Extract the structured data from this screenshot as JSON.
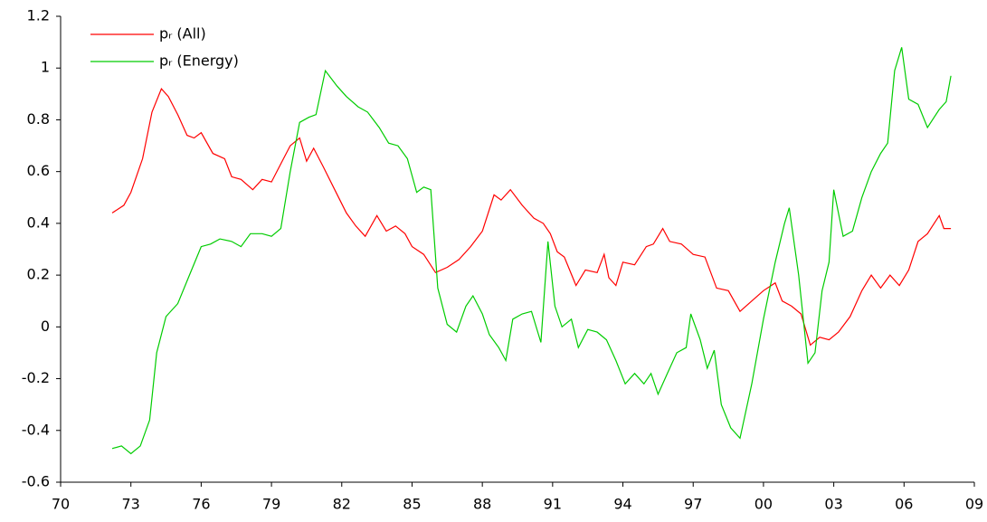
{
  "chart_data": {
    "type": "line",
    "xlim": [
      1970,
      2009
    ],
    "xticks": [
      {
        "value": 1970,
        "label": "70"
      },
      {
        "value": 1973,
        "label": "73"
      },
      {
        "value": 1976,
        "label": "76"
      },
      {
        "value": 1979,
        "label": "79"
      },
      {
        "value": 1982,
        "label": "82"
      },
      {
        "value": 1985,
        "label": "85"
      },
      {
        "value": 1988,
        "label": "88"
      },
      {
        "value": 1991,
        "label": "91"
      },
      {
        "value": 1994,
        "label": "94"
      },
      {
        "value": 1997,
        "label": "97"
      },
      {
        "value": 2000,
        "label": "00"
      },
      {
        "value": 2003,
        "label": "03"
      },
      {
        "value": 2006,
        "label": "06"
      },
      {
        "value": 2009,
        "label": "09"
      }
    ],
    "ylim": [
      -0.6,
      1.2
    ],
    "yticks": [
      -0.6,
      -0.4,
      -0.2,
      0,
      0.2,
      0.4,
      0.6,
      0.8,
      1,
      1.2
    ],
    "grid": false,
    "legend": "top-left",
    "series": [
      {
        "name": "pᵣ (All)",
        "color": "#ff0000",
        "x": [
          1972.2,
          1972.7,
          1973.0,
          1973.5,
          1973.9,
          1974.3,
          1974.6,
          1975.0,
          1975.4,
          1975.7,
          1976.0,
          1976.5,
          1977.0,
          1977.3,
          1977.7,
          1978.2,
          1978.6,
          1979.0,
          1979.4,
          1979.8,
          1980.2,
          1980.5,
          1980.8,
          1981.2,
          1981.7,
          1982.2,
          1982.6,
          1983.0,
          1983.5,
          1983.9,
          1984.3,
          1984.7,
          1985.0,
          1985.5,
          1986.0,
          1986.5,
          1987.0,
          1987.5,
          1988.0,
          1988.5,
          1988.8,
          1989.2,
          1989.7,
          1990.2,
          1990.6,
          1990.9,
          1991.2,
          1991.5,
          1992.0,
          1992.4,
          1992.9,
          1993.2,
          1993.4,
          1993.7,
          1994.0,
          1994.5,
          1995.0,
          1995.3,
          1995.7,
          1996.0,
          1996.5,
          1997.0,
          1997.5,
          1998.0,
          1998.5,
          1999.0,
          1999.5,
          2000.0,
          2000.5,
          2000.8,
          2001.2,
          2001.6,
          2002.0,
          2002.4,
          2002.8,
          2003.2,
          2003.7,
          2004.2,
          2004.6,
          2005.0,
          2005.4,
          2005.8,
          2006.2,
          2006.6,
          2007.0,
          2007.5,
          2007.7,
          2008.0
        ],
        "values": [
          0.44,
          0.47,
          0.52,
          0.65,
          0.83,
          0.92,
          0.89,
          0.82,
          0.74,
          0.73,
          0.75,
          0.67,
          0.65,
          0.58,
          0.57,
          0.53,
          0.57,
          0.56,
          0.63,
          0.7,
          0.73,
          0.64,
          0.69,
          0.62,
          0.53,
          0.44,
          0.39,
          0.35,
          0.43,
          0.37,
          0.39,
          0.36,
          0.31,
          0.28,
          0.21,
          0.23,
          0.26,
          0.31,
          0.37,
          0.51,
          0.49,
          0.53,
          0.47,
          0.42,
          0.4,
          0.36,
          0.29,
          0.27,
          0.16,
          0.22,
          0.21,
          0.28,
          0.19,
          0.16,
          0.25,
          0.24,
          0.31,
          0.32,
          0.38,
          0.33,
          0.32,
          0.28,
          0.27,
          0.15,
          0.14,
          0.06,
          0.1,
          0.14,
          0.17,
          0.1,
          0.08,
          0.05,
          -0.07,
          -0.04,
          -0.05,
          -0.02,
          0.04,
          0.14,
          0.2,
          0.15,
          0.2,
          0.16,
          0.22,
          0.33,
          0.36,
          0.43,
          0.38,
          0.38
        ]
      },
      {
        "name": "pᵣ (Energy)",
        "color": "#00cc00",
        "x": [
          1972.2,
          1972.6,
          1973.0,
          1973.4,
          1973.8,
          1974.1,
          1974.5,
          1975.0,
          1975.5,
          1976.0,
          1976.4,
          1976.8,
          1977.3,
          1977.7,
          1978.1,
          1978.6,
          1979.0,
          1979.4,
          1979.8,
          1980.2,
          1980.6,
          1980.9,
          1981.3,
          1981.8,
          1982.2,
          1982.7,
          1983.1,
          1983.6,
          1984.0,
          1984.4,
          1984.8,
          1985.2,
          1985.5,
          1985.8,
          1986.1,
          1986.5,
          1986.9,
          1987.3,
          1987.6,
          1988.0,
          1988.3,
          1988.7,
          1989.0,
          1989.3,
          1989.7,
          1990.1,
          1990.5,
          1990.8,
          1991.1,
          1991.4,
          1991.8,
          1992.1,
          1992.5,
          1992.9,
          1993.3,
          1993.7,
          1994.1,
          1994.5,
          1994.9,
          1995.2,
          1995.5,
          1995.9,
          1996.3,
          1996.7,
          1996.9,
          1997.3,
          1997.6,
          1997.9,
          1998.2,
          1998.6,
          1999.0,
          1999.5,
          2000.0,
          2000.5,
          2000.9,
          2001.1,
          2001.5,
          2001.9,
          2002.2,
          2002.5,
          2002.8,
          2003.0,
          2003.4,
          2003.8,
          2004.2,
          2004.6,
          2005.0,
          2005.3,
          2005.6,
          2005.9,
          2006.2,
          2006.6,
          2007.0,
          2007.5,
          2007.8,
          2008.0
        ],
        "values": [
          -0.47,
          -0.46,
          -0.49,
          -0.46,
          -0.36,
          -0.1,
          0.04,
          0.09,
          0.2,
          0.31,
          0.32,
          0.34,
          0.33,
          0.31,
          0.36,
          0.36,
          0.35,
          0.38,
          0.6,
          0.79,
          0.81,
          0.82,
          0.99,
          0.93,
          0.89,
          0.85,
          0.83,
          0.77,
          0.71,
          0.7,
          0.65,
          0.52,
          0.54,
          0.53,
          0.15,
          0.01,
          -0.02,
          0.08,
          0.12,
          0.05,
          -0.03,
          -0.08,
          -0.13,
          0.03,
          0.05,
          0.06,
          -0.06,
          0.33,
          0.08,
          0.0,
          0.03,
          -0.08,
          -0.01,
          -0.02,
          -0.05,
          -0.13,
          -0.22,
          -0.18,
          -0.22,
          -0.18,
          -0.26,
          -0.18,
          -0.1,
          -0.08,
          0.05,
          -0.05,
          -0.16,
          -0.09,
          -0.3,
          -0.39,
          -0.43,
          -0.22,
          0.03,
          0.25,
          0.4,
          0.46,
          0.2,
          -0.14,
          -0.1,
          0.14,
          0.25,
          0.53,
          0.35,
          0.37,
          0.5,
          0.6,
          0.67,
          0.71,
          0.99,
          1.08,
          0.88,
          0.86,
          0.77,
          0.84,
          0.87,
          0.97
        ]
      }
    ]
  }
}
